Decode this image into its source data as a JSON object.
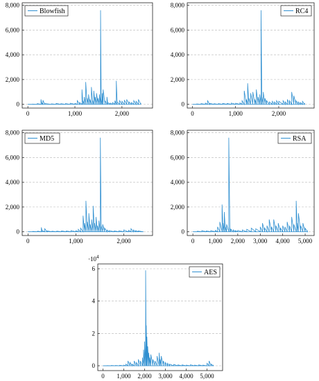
{
  "figure": {
    "line_color": "#2f8fd0",
    "grid_color": "#b5b5b5",
    "axis_color": "#000000"
  },
  "chart_data": [
    {
      "type": "line",
      "series": [
        {
          "name": "Blowfish",
          "values_description": ""
        }
      ],
      "x_ticks": [
        0,
        1000,
        2000
      ],
      "x_tick_labels": [
        "0",
        "1,000",
        "2,000"
      ],
      "y_ticks": [
        0,
        2000,
        4000,
        6000,
        8000
      ],
      "y_tick_labels": [
        "0",
        "2,000",
        "4,000",
        "6,000",
        "8,000"
      ],
      "xlim": [
        -120,
        2650
      ],
      "ylim": [
        -300,
        8200
      ],
      "grid": "horizontal dashed",
      "legend": "top-left",
      "points": [
        [
          0,
          0
        ],
        [
          100,
          20
        ],
        [
          200,
          60
        ],
        [
          280,
          400
        ],
        [
          300,
          120
        ],
        [
          320,
          330
        ],
        [
          360,
          60
        ],
        [
          500,
          40
        ],
        [
          600,
          70
        ],
        [
          700,
          50
        ],
        [
          800,
          60
        ],
        [
          900,
          90
        ],
        [
          1000,
          80
        ],
        [
          1050,
          300
        ],
        [
          1100,
          150
        ],
        [
          1150,
          1200
        ],
        [
          1170,
          300
        ],
        [
          1200,
          600
        ],
        [
          1230,
          1800
        ],
        [
          1260,
          500
        ],
        [
          1290,
          800
        ],
        [
          1320,
          400
        ],
        [
          1350,
          1400
        ],
        [
          1380,
          300
        ],
        [
          1400,
          1100
        ],
        [
          1430,
          600
        ],
        [
          1460,
          900
        ],
        [
          1490,
          500
        ],
        [
          1520,
          800
        ],
        [
          1545,
          7600
        ],
        [
          1560,
          400
        ],
        [
          1580,
          900
        ],
        [
          1600,
          1200
        ],
        [
          1640,
          300
        ],
        [
          1680,
          600
        ],
        [
          1700,
          150
        ],
        [
          1750,
          100
        ],
        [
          1800,
          150
        ],
        [
          1850,
          300
        ],
        [
          1880,
          1900
        ],
        [
          1900,
          200
        ],
        [
          1950,
          300
        ],
        [
          2000,
          250
        ],
        [
          2050,
          350
        ],
        [
          2100,
          400
        ],
        [
          2150,
          200
        ],
        [
          2200,
          150
        ],
        [
          2250,
          300
        ],
        [
          2300,
          250
        ],
        [
          2350,
          400
        ],
        [
          2400,
          100
        ]
      ]
    },
    {
      "type": "line",
      "series": [
        {
          "name": "RC4",
          "values_description": ""
        }
      ],
      "x_ticks": [
        0,
        1000,
        2000
      ],
      "x_tick_labels": [
        "0",
        "1,000",
        "2,000"
      ],
      "y_ticks": [
        0,
        2000,
        4000,
        6000,
        8000
      ],
      "y_tick_labels": [
        "0",
        "2,000",
        "4,000",
        "6,000",
        "8,000"
      ],
      "xlim": [
        -120,
        2820
      ],
      "ylim": [
        -300,
        8200
      ],
      "grid": "horizontal dashed",
      "legend": "top-right",
      "points": [
        [
          0,
          0
        ],
        [
          100,
          30
        ],
        [
          200,
          60
        ],
        [
          300,
          100
        ],
        [
          350,
          300
        ],
        [
          400,
          80
        ],
        [
          500,
          50
        ],
        [
          600,
          60
        ],
        [
          700,
          80
        ],
        [
          800,
          70
        ],
        [
          900,
          100
        ],
        [
          1000,
          90
        ],
        [
          1100,
          120
        ],
        [
          1150,
          300
        ],
        [
          1200,
          1100
        ],
        [
          1250,
          400
        ],
        [
          1280,
          1700
        ],
        [
          1310,
          500
        ],
        [
          1350,
          900
        ],
        [
          1400,
          1000
        ],
        [
          1450,
          400
        ],
        [
          1480,
          1200
        ],
        [
          1520,
          600
        ],
        [
          1560,
          800
        ],
        [
          1590,
          7600
        ],
        [
          1610,
          600
        ],
        [
          1640,
          1000
        ],
        [
          1680,
          500
        ],
        [
          1720,
          300
        ],
        [
          1780,
          200
        ],
        [
          1850,
          250
        ],
        [
          1900,
          200
        ],
        [
          1950,
          300
        ],
        [
          2000,
          250
        ],
        [
          2100,
          300
        ],
        [
          2150,
          200
        ],
        [
          2200,
          400
        ],
        [
          2250,
          300
        ],
        [
          2300,
          1000
        ],
        [
          2350,
          700
        ],
        [
          2400,
          300
        ],
        [
          2450,
          200
        ],
        [
          2500,
          150
        ],
        [
          2550,
          250
        ],
        [
          2600,
          100
        ]
      ]
    },
    {
      "type": "line",
      "series": [
        {
          "name": "MD5",
          "values_description": ""
        }
      ],
      "x_ticks": [
        0,
        1000,
        2000
      ],
      "x_tick_labels": [
        "0",
        "1,000",
        "2,000"
      ],
      "y_ticks": [
        0,
        2000,
        4000,
        6000,
        8000
      ],
      "y_tick_labels": [
        "0",
        "2,000",
        "4,000",
        "6,000",
        "8,000"
      ],
      "xlim": [
        -120,
        2600
      ],
      "ylim": [
        -300,
        8200
      ],
      "grid": "horizontal dashed",
      "legend": "top-left",
      "points": [
        [
          0,
          0
        ],
        [
          100,
          30
        ],
        [
          200,
          60
        ],
        [
          280,
          350
        ],
        [
          300,
          100
        ],
        [
          350,
          250
        ],
        [
          400,
          80
        ],
        [
          500,
          50
        ],
        [
          600,
          60
        ],
        [
          700,
          80
        ],
        [
          800,
          70
        ],
        [
          900,
          100
        ],
        [
          1000,
          90
        ],
        [
          1050,
          200
        ],
        [
          1100,
          300
        ],
        [
          1150,
          1300
        ],
        [
          1180,
          700
        ],
        [
          1210,
          2500
        ],
        [
          1240,
          800
        ],
        [
          1270,
          1500
        ],
        [
          1300,
          600
        ],
        [
          1330,
          1000
        ],
        [
          1360,
          2100
        ],
        [
          1390,
          700
        ],
        [
          1420,
          1200
        ],
        [
          1450,
          500
        ],
        [
          1480,
          900
        ],
        [
          1510,
          7600
        ],
        [
          1530,
          500
        ],
        [
          1560,
          600
        ],
        [
          1600,
          300
        ],
        [
          1650,
          150
        ],
        [
          1700,
          100
        ],
        [
          1800,
          80
        ],
        [
          1900,
          90
        ],
        [
          2000,
          150
        ],
        [
          2100,
          120
        ],
        [
          2150,
          250
        ],
        [
          2200,
          150
        ],
        [
          2250,
          100
        ],
        [
          2300,
          80
        ],
        [
          2400,
          50
        ]
      ]
    },
    {
      "type": "line",
      "series": [
        {
          "name": "RSA",
          "values_description": ""
        }
      ],
      "x_ticks": [
        0,
        1000,
        2000,
        3000,
        4000,
        5000
      ],
      "x_tick_labels": [
        "0",
        "1,000",
        "2,000",
        "3,000",
        "4,000",
        "5,000"
      ],
      "y_ticks": [
        0,
        2000,
        4000,
        6000,
        8000
      ],
      "y_tick_labels": [
        "0",
        "2,000",
        "4,000",
        "6,000",
        "8,000"
      ],
      "xlim": [
        -250,
        5400
      ],
      "ylim": [
        -300,
        8200
      ],
      "grid": "horizontal dashed",
      "legend": "top-right",
      "points": [
        [
          0,
          0
        ],
        [
          200,
          50
        ],
        [
          400,
          100
        ],
        [
          600,
          80
        ],
        [
          800,
          100
        ],
        [
          1000,
          120
        ],
        [
          1100,
          400
        ],
        [
          1200,
          800
        ],
        [
          1300,
          2200
        ],
        [
          1350,
          700
        ],
        [
          1400,
          1600
        ],
        [
          1450,
          400
        ],
        [
          1500,
          600
        ],
        [
          1600,
          7600
        ],
        [
          1650,
          300
        ],
        [
          1700,
          200
        ],
        [
          1800,
          150
        ],
        [
          1900,
          100
        ],
        [
          2000,
          120
        ],
        [
          2200,
          150
        ],
        [
          2400,
          200
        ],
        [
          2600,
          300
        ],
        [
          2800,
          250
        ],
        [
          3000,
          400
        ],
        [
          3100,
          700
        ],
        [
          3200,
          300
        ],
        [
          3300,
          500
        ],
        [
          3400,
          1000
        ],
        [
          3500,
          400
        ],
        [
          3600,
          1000
        ],
        [
          3700,
          500
        ],
        [
          3800,
          700
        ],
        [
          3900,
          300
        ],
        [
          4000,
          500
        ],
        [
          4100,
          400
        ],
        [
          4200,
          800
        ],
        [
          4300,
          500
        ],
        [
          4400,
          1200
        ],
        [
          4500,
          600
        ],
        [
          4600,
          2500
        ],
        [
          4650,
          700
        ],
        [
          4700,
          1500
        ],
        [
          4800,
          500
        ],
        [
          4900,
          700
        ],
        [
          5000,
          300
        ],
        [
          5100,
          100
        ]
      ]
    },
    {
      "type": "line",
      "series": [
        {
          "name": "AES",
          "values_description": ""
        }
      ],
      "x_ticks": [
        0,
        1000,
        2000,
        3000,
        4000,
        5000
      ],
      "x_tick_labels": [
        "0",
        "1,000",
        "2,000",
        "3,000",
        "4,000",
        "5,000"
      ],
      "y_ticks": [
        0,
        2,
        4,
        6
      ],
      "y_tick_labels": [
        "0",
        "2",
        "4",
        "6"
      ],
      "y_multiplier_label": "·10",
      "y_multiplier_exponent": "4",
      "xlim": [
        -250,
        5750
      ],
      "ylim": [
        -0.3,
        6.3
      ],
      "grid": "horizontal dashed",
      "legend": "top-right",
      "points": [
        [
          0,
          0
        ],
        [
          200,
          0.01
        ],
        [
          400,
          0.02
        ],
        [
          600,
          0.02
        ],
        [
          800,
          0.03
        ],
        [
          1000,
          0.04
        ],
        [
          1100,
          0.1
        ],
        [
          1200,
          0.3
        ],
        [
          1300,
          0.2
        ],
        [
          1400,
          0.1
        ],
        [
          1500,
          0.3
        ],
        [
          1600,
          0.2
        ],
        [
          1700,
          0.4
        ],
        [
          1800,
          0.3
        ],
        [
          1900,
          0.5
        ],
        [
          1950,
          1.0
        ],
        [
          2000,
          1.5
        ],
        [
          2050,
          5.9
        ],
        [
          2080,
          2.5
        ],
        [
          2110,
          1.8
        ],
        [
          2150,
          1.2
        ],
        [
          2200,
          0.8
        ],
        [
          2250,
          0.5
        ],
        [
          2300,
          0.7
        ],
        [
          2400,
          0.4
        ],
        [
          2500,
          0.3
        ],
        [
          2600,
          0.6
        ],
        [
          2700,
          0.8
        ],
        [
          2750,
          0.4
        ],
        [
          2800,
          0.6
        ],
        [
          2900,
          0.3
        ],
        [
          3000,
          0.2
        ],
        [
          3100,
          0.15
        ],
        [
          3200,
          0.1
        ],
        [
          3400,
          0.08
        ],
        [
          3600,
          0.05
        ],
        [
          3800,
          0.05
        ],
        [
          4000,
          0.04
        ],
        [
          4200,
          0.06
        ],
        [
          4400,
          0.04
        ],
        [
          4600,
          0.05
        ],
        [
          4800,
          0.04
        ],
        [
          5000,
          0.15
        ],
        [
          5100,
          0.3
        ],
        [
          5200,
          0.1
        ],
        [
          5300,
          0.05
        ]
      ]
    }
  ]
}
